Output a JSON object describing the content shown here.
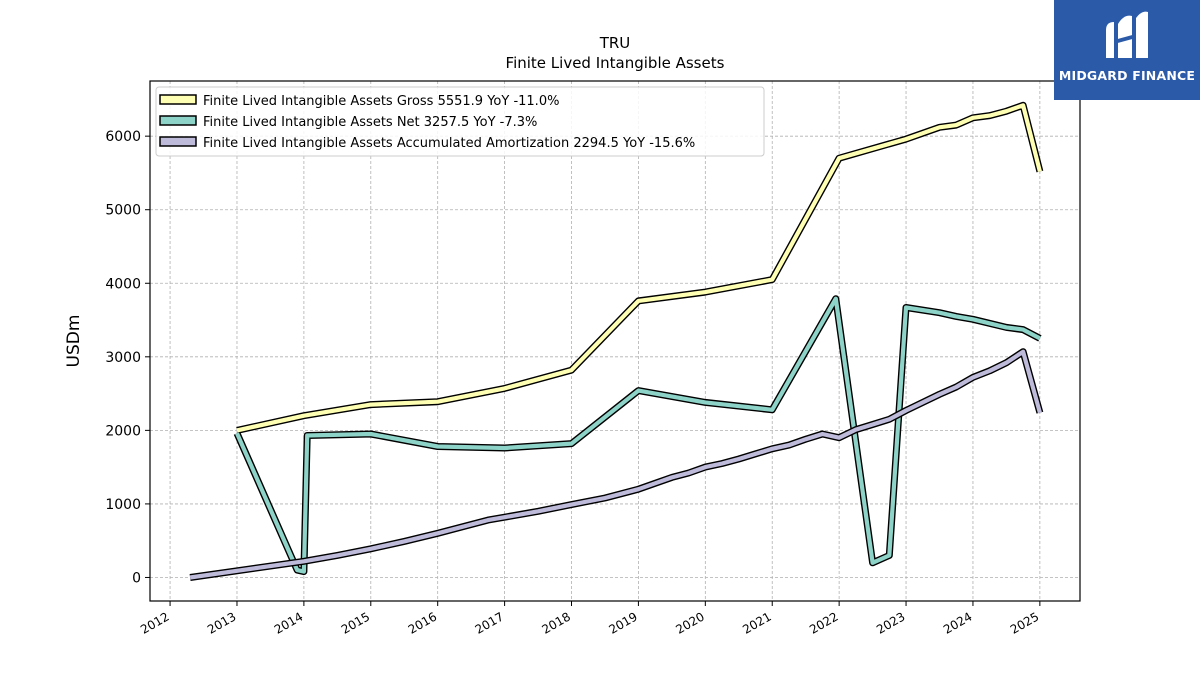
{
  "chart_data": {
    "type": "line",
    "title": "TRU",
    "subtitle": "Finite Lived Intangible Assets",
    "ylabel": "USDm",
    "xlabel": "",
    "xlim": [
      2011.7,
      2025.6
    ],
    "ylim": [
      -320,
      6750
    ],
    "xticks": [
      "2012",
      "2013",
      "2014",
      "2015",
      "2016",
      "2017",
      "2018",
      "2019",
      "2020",
      "2021",
      "2022",
      "2023",
      "2024",
      "2025"
    ],
    "yticks": [
      "0",
      "1000",
      "2000",
      "3000",
      "4000",
      "5000",
      "6000"
    ],
    "grid": true,
    "legend_position": "top-left",
    "series": [
      {
        "name": "Finite Lived Intangible Assets Gross  5551.9 YoY -11.0%",
        "color": "#ffffb3",
        "points": [
          [
            2013.0,
            2000
          ],
          [
            2014.0,
            2200
          ],
          [
            2015.0,
            2350
          ],
          [
            2016.0,
            2390
          ],
          [
            2017.0,
            2570
          ],
          [
            2018.0,
            2820
          ],
          [
            2019.0,
            3760
          ],
          [
            2020.0,
            3880
          ],
          [
            2021.0,
            4050
          ],
          [
            2022.0,
            5700
          ],
          [
            2023.0,
            5960
          ],
          [
            2023.25,
            6040
          ],
          [
            2023.5,
            6120
          ],
          [
            2023.75,
            6150
          ],
          [
            2024.0,
            6250
          ],
          [
            2024.25,
            6280
          ],
          [
            2024.5,
            6340
          ],
          [
            2024.75,
            6420
          ],
          [
            2025.0,
            5520
          ]
        ]
      },
      {
        "name": "Finite Lived Intangible Assets Net  3257.5 YoY -7.3%",
        "color": "#8dd3c7",
        "points": [
          [
            2013.0,
            1960
          ],
          [
            2013.9,
            100
          ],
          [
            2014.0,
            80
          ],
          [
            2014.05,
            1930
          ],
          [
            2015.0,
            1950
          ],
          [
            2016.0,
            1780
          ],
          [
            2017.0,
            1760
          ],
          [
            2018.0,
            1820
          ],
          [
            2019.0,
            2540
          ],
          [
            2020.0,
            2380
          ],
          [
            2021.0,
            2280
          ],
          [
            2021.95,
            3790
          ],
          [
            2022.5,
            200
          ],
          [
            2022.75,
            300
          ],
          [
            2023.0,
            3670
          ],
          [
            2023.5,
            3600
          ],
          [
            2023.75,
            3550
          ],
          [
            2024.0,
            3510
          ],
          [
            2024.5,
            3400
          ],
          [
            2024.75,
            3370
          ],
          [
            2025.0,
            3250
          ]
        ]
      },
      {
        "name": "Finite Lived Intangible Assets Accumulated Amortization  2294.5 YoY -15.6%",
        "color": "#bebada",
        "points": [
          [
            2012.3,
            0
          ],
          [
            2013.0,
            90
          ],
          [
            2014.0,
            220
          ],
          [
            2014.5,
            300
          ],
          [
            2015.0,
            390
          ],
          [
            2015.5,
            490
          ],
          [
            2016.0,
            600
          ],
          [
            2016.5,
            720
          ],
          [
            2016.75,
            780
          ],
          [
            2017.0,
            820
          ],
          [
            2017.5,
            900
          ],
          [
            2018.0,
            990
          ],
          [
            2018.5,
            1080
          ],
          [
            2019.0,
            1200
          ],
          [
            2019.25,
            1280
          ],
          [
            2019.5,
            1360
          ],
          [
            2019.75,
            1420
          ],
          [
            2020.0,
            1500
          ],
          [
            2020.25,
            1550
          ],
          [
            2020.5,
            1610
          ],
          [
            2020.75,
            1680
          ],
          [
            2021.0,
            1750
          ],
          [
            2021.25,
            1800
          ],
          [
            2021.5,
            1880
          ],
          [
            2021.75,
            1950
          ],
          [
            2022.0,
            1900
          ],
          [
            2022.25,
            2010
          ],
          [
            2022.5,
            2080
          ],
          [
            2022.75,
            2150
          ],
          [
            2023.0,
            2270
          ],
          [
            2023.25,
            2380
          ],
          [
            2023.5,
            2490
          ],
          [
            2023.75,
            2590
          ],
          [
            2024.0,
            2720
          ],
          [
            2024.25,
            2810
          ],
          [
            2024.5,
            2920
          ],
          [
            2024.75,
            3070
          ],
          [
            2025.0,
            2240
          ]
        ]
      }
    ]
  },
  "logo": {
    "name": "MIDGARD FINANCE",
    "icon": "midgard-mark-icon",
    "background": "#2b5aa8"
  }
}
